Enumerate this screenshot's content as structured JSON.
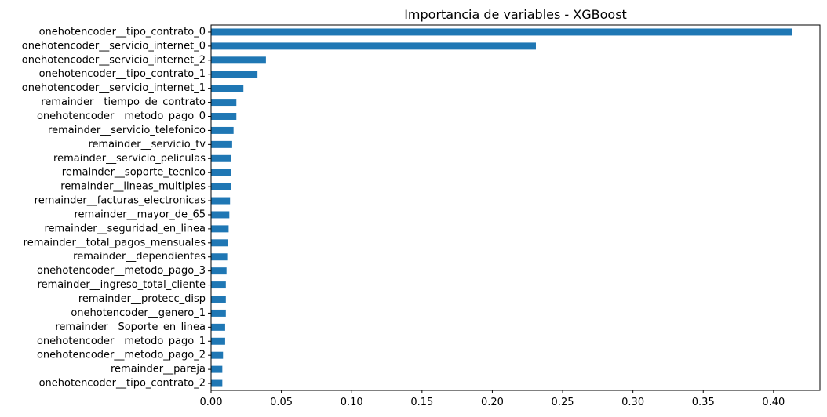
{
  "chart_data": {
    "type": "bar",
    "orientation": "horizontal",
    "title": "Importancia de variables - XGBoost",
    "xlabel": "",
    "ylabel": "",
    "xlim": [
      0,
      0.433
    ],
    "xticks": [
      0.0,
      0.05,
      0.1,
      0.15,
      0.2,
      0.25,
      0.3,
      0.35,
      0.4
    ],
    "xtick_labels": [
      "0.00",
      "0.05",
      "0.10",
      "0.15",
      "0.20",
      "0.25",
      "0.30",
      "0.35",
      "0.40"
    ],
    "grid": false,
    "bar_color": "#1f77b4",
    "categories": [
      "onehotencoder__tipo_contrato_0",
      "onehotencoder__servicio_internet_0",
      "onehotencoder__servicio_internet_2",
      "onehotencoder__tipo_contrato_1",
      "onehotencoder__servicio_internet_1",
      "remainder__tiempo_de_contrato",
      "onehotencoder__metodo_pago_0",
      "remainder__servicio_telefonico",
      "remainder__servicio_tv",
      "remainder__servicio_peliculas",
      "remainder__soporte_tecnico",
      "remainder__lineas_multiples",
      "remainder__facturas_electronicas",
      "remainder__mayor_de_65",
      "remainder__seguridad_en_linea",
      "remainder__total_pagos_mensuales",
      "remainder__dependientes",
      "onehotencoder__metodo_pago_3",
      "remainder__ingreso_total_cliente",
      "remainder__protecc_disp",
      "onehotencoder__genero_1",
      "remainder__Soporte_en_linea",
      "onehotencoder__metodo_pago_1",
      "onehotencoder__metodo_pago_2",
      "remainder__pareja",
      "onehotencoder__tipo_contrato_2"
    ],
    "values": [
      0.413,
      0.231,
      0.039,
      0.033,
      0.023,
      0.018,
      0.018,
      0.016,
      0.015,
      0.0145,
      0.014,
      0.014,
      0.0135,
      0.013,
      0.0125,
      0.012,
      0.0115,
      0.011,
      0.0105,
      0.0105,
      0.0105,
      0.01,
      0.01,
      0.0085,
      0.008,
      0.008
    ]
  }
}
